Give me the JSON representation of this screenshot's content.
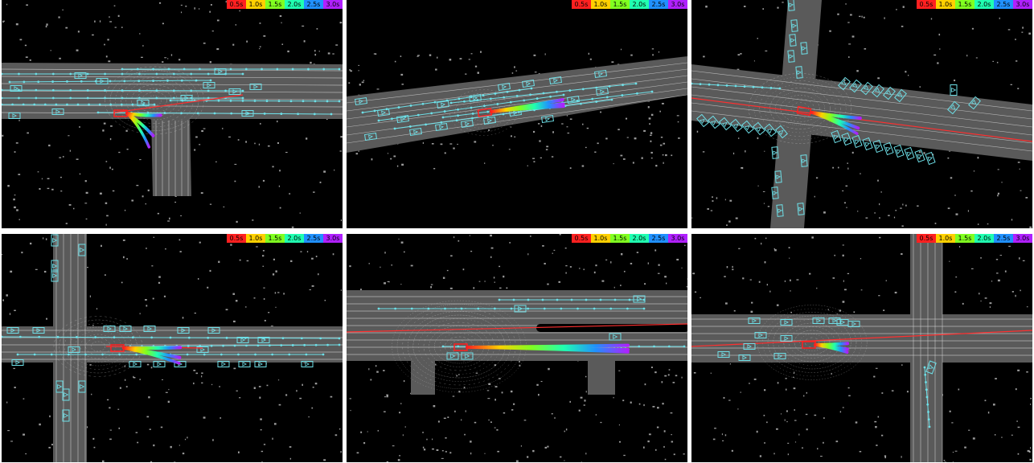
{
  "legend": {
    "labels": [
      "0.5s",
      "1.0s",
      "1.5s",
      "2.0s",
      "2.5s",
      "3.0s"
    ],
    "colors": [
      "#ff2020",
      "#ffd000",
      "#80ff20",
      "#20ffb0",
      "#2090ff",
      "#b020ff"
    ]
  },
  "colors": {
    "road": "#5a5a5a",
    "lane": "#cfcfcf",
    "agent": "#6ee0e8",
    "route": "#ff3030",
    "background": "#000000"
  },
  "panels": [
    {
      "id": "top-left"
    },
    {
      "id": "top-middle"
    },
    {
      "id": "top-right"
    },
    {
      "id": "bottom-left"
    },
    {
      "id": "bottom-middle"
    },
    {
      "id": "bottom-right"
    }
  ]
}
